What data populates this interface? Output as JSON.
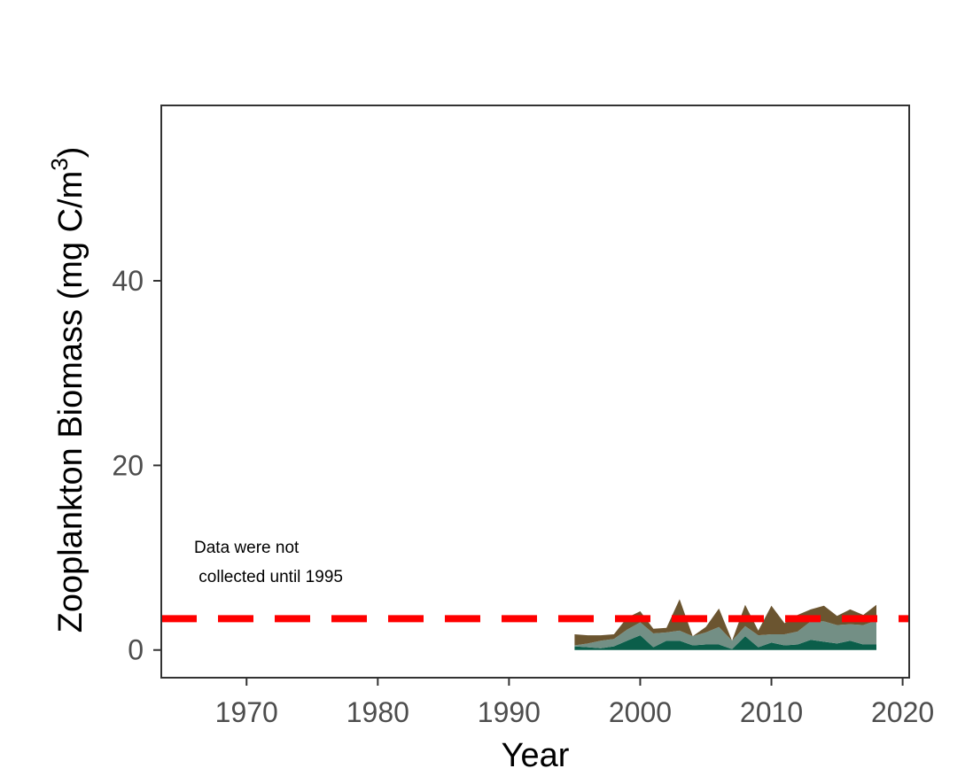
{
  "chart_data": {
    "type": "area",
    "xlabel": "Year",
    "ylabel": "Zooplankton Biomass (mg C/m",
    "ylabel_superscript": "3",
    "ylabel_close": ")",
    "xlim": [
      1963.5,
      2020.5
    ],
    "ylim": [
      -3,
      59
    ],
    "x_ticks": [
      1970,
      1980,
      1990,
      2000,
      2010,
      2020
    ],
    "y_ticks": [
      0,
      20,
      40
    ],
    "grid": false,
    "x": [
      1995,
      1996,
      1997,
      1998,
      1999,
      2000,
      2001,
      2002,
      2003,
      2004,
      2005,
      2006,
      2007,
      2008,
      2009,
      2010,
      2011,
      2012,
      2013,
      2014,
      2015,
      2016,
      2017,
      2018
    ],
    "series": [
      {
        "color": "#0b5e4a",
        "values": [
          0.4,
          0.3,
          0.2,
          0.4,
          1.0,
          1.6,
          0.3,
          1.0,
          1.0,
          0.5,
          0.6,
          0.6,
          0.1,
          1.5,
          0.3,
          0.8,
          0.5,
          0.6,
          1.1,
          0.9,
          0.7,
          1.0,
          0.6,
          0.6
        ]
      },
      {
        "color": "#738f85",
        "values": [
          0.1,
          0.4,
          0.8,
          0.8,
          1.2,
          1.4,
          1.5,
          0.9,
          1.1,
          1.0,
          1.3,
          1.9,
          0.9,
          1.1,
          1.3,
          0.9,
          1.2,
          1.4,
          2.0,
          2.2,
          2.0,
          1.8,
          2.1,
          2.6
        ]
      },
      {
        "color": "#6b5530",
        "values": [
          1.2,
          0.9,
          0.6,
          0.5,
          1.3,
          1.2,
          0.5,
          0.5,
          3.4,
          0.0,
          0.6,
          2.0,
          0.0,
          2.3,
          0.5,
          3.1,
          1.2,
          1.8,
          1.3,
          1.7,
          1.0,
          1.6,
          1.1,
          1.7
        ]
      }
    ],
    "reference_line": {
      "y": 3.4,
      "color": "#ff0000",
      "style": "dashed"
    },
    "annotation": [
      "Data were not",
      " collected until 1995"
    ]
  }
}
